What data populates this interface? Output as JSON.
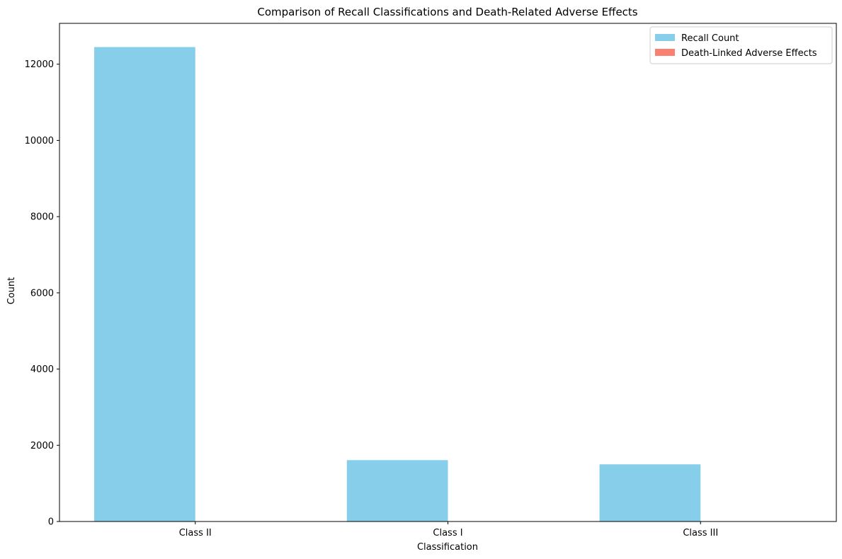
{
  "chart_data": {
    "type": "bar",
    "title": "Comparison of Recall Classifications and Death-Related Adverse Effects",
    "xlabel": "Classification",
    "ylabel": "Count",
    "categories": [
      "Class II",
      "Class I",
      "Class III"
    ],
    "series": [
      {
        "name": "Recall Count",
        "color": "#87ceeb",
        "values": [
          12450,
          1610,
          1500
        ]
      },
      {
        "name": "Death-Linked Adverse Effects",
        "color": "#fa8072",
        "values": [
          0,
          0,
          0
        ]
      }
    ],
    "ylim": [
      0,
      13072
    ],
    "yticks": [
      0,
      2000,
      4000,
      6000,
      8000,
      10000,
      12000
    ],
    "grid": false,
    "legend_position": "top-right"
  }
}
